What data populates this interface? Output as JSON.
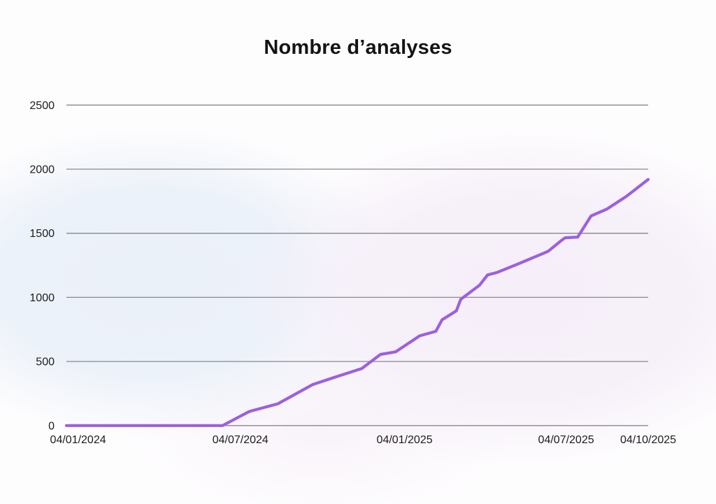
{
  "chart_data": {
    "type": "line",
    "title": "Nombre d’analyses",
    "series_name": "Nombre d’analyses",
    "legend": "none",
    "grid": "horizontal",
    "line_color": "#9d5fe0",
    "gridline_color": "#86898d",
    "text_color": "#1c1c1c",
    "title_color": "#141414",
    "ylim": [
      0,
      2500
    ],
    "yticks": [
      0,
      500,
      1000,
      1500,
      2000,
      2500
    ],
    "ytick_labels": [
      "0",
      "500",
      "1000",
      "1500",
      "2000",
      "2500"
    ],
    "x_domain": [
      "2023-12-22",
      "2025-10-04"
    ],
    "xticks": [
      {
        "date": "2024-01-04",
        "label": "04/01/2024"
      },
      {
        "date": "2024-07-04",
        "label": "04/07/2024"
      },
      {
        "date": "2025-01-04",
        "label": "04/01/2025"
      },
      {
        "date": "2025-07-04",
        "label": "04/07/2025"
      },
      {
        "date": "2025-10-04",
        "label": "04/10/2025"
      }
    ],
    "points": [
      {
        "date": "2023-12-22",
        "value": 0
      },
      {
        "date": "2024-02-15",
        "value": 0
      },
      {
        "date": "2024-04-15",
        "value": 0
      },
      {
        "date": "2024-06-14",
        "value": 0
      },
      {
        "date": "2024-07-14",
        "value": 110
      },
      {
        "date": "2024-08-15",
        "value": 170
      },
      {
        "date": "2024-09-23",
        "value": 320
      },
      {
        "date": "2024-10-19",
        "value": 380
      },
      {
        "date": "2024-11-17",
        "value": 445
      },
      {
        "date": "2024-12-08",
        "value": 555
      },
      {
        "date": "2024-12-25",
        "value": 575
      },
      {
        "date": "2025-01-21",
        "value": 700
      },
      {
        "date": "2025-02-08",
        "value": 735
      },
      {
        "date": "2025-02-15",
        "value": 825
      },
      {
        "date": "2025-03-03",
        "value": 895
      },
      {
        "date": "2025-03-08",
        "value": 985
      },
      {
        "date": "2025-03-29",
        "value": 1095
      },
      {
        "date": "2025-04-07",
        "value": 1175
      },
      {
        "date": "2025-04-18",
        "value": 1195
      },
      {
        "date": "2025-05-11",
        "value": 1260
      },
      {
        "date": "2025-06-14",
        "value": 1360
      },
      {
        "date": "2025-06-29",
        "value": 1445
      },
      {
        "date": "2025-07-03",
        "value": 1465
      },
      {
        "date": "2025-07-17",
        "value": 1470
      },
      {
        "date": "2025-08-01",
        "value": 1635
      },
      {
        "date": "2025-08-19",
        "value": 1690
      },
      {
        "date": "2025-09-10",
        "value": 1790
      },
      {
        "date": "2025-10-04",
        "value": 1920
      }
    ]
  }
}
